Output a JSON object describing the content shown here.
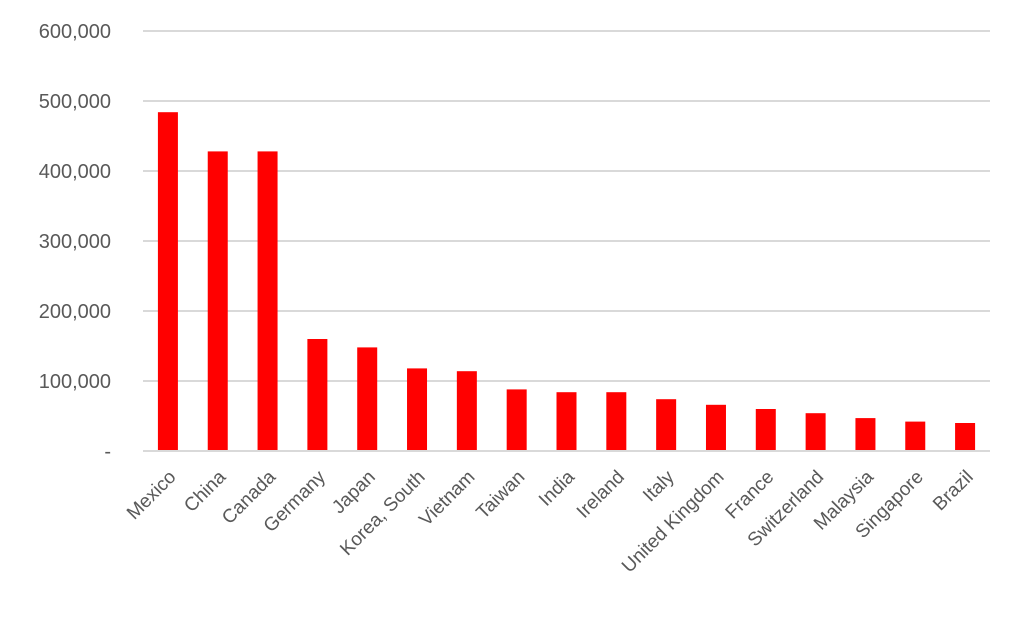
{
  "chart_data": {
    "type": "bar",
    "categories": [
      "Mexico",
      "China",
      "Canada",
      "Germany",
      "Japan",
      "Korea, South",
      "Vietnam",
      "Taiwan",
      "India",
      "Ireland",
      "Italy",
      "United Kingdom",
      "France",
      "Switzerland",
      "Malaysia",
      "Singapore",
      "Brazil"
    ],
    "values": [
      484000,
      428000,
      428000,
      160000,
      148000,
      118000,
      114000,
      88000,
      84000,
      84000,
      74000,
      66000,
      60000,
      54000,
      47000,
      42000,
      40000
    ],
    "ylim": [
      0,
      600000
    ],
    "yticks": [
      0,
      100000,
      200000,
      300000,
      400000,
      500000,
      600000
    ],
    "ytick_labels": [
      "-",
      "100,000",
      "200,000",
      "300,000",
      "400,000",
      "500,000",
      "600,000"
    ],
    "grid": true,
    "bar_color": "#ff0000",
    "gridline_color": "#d9d9d9",
    "text_color": "#595959"
  }
}
